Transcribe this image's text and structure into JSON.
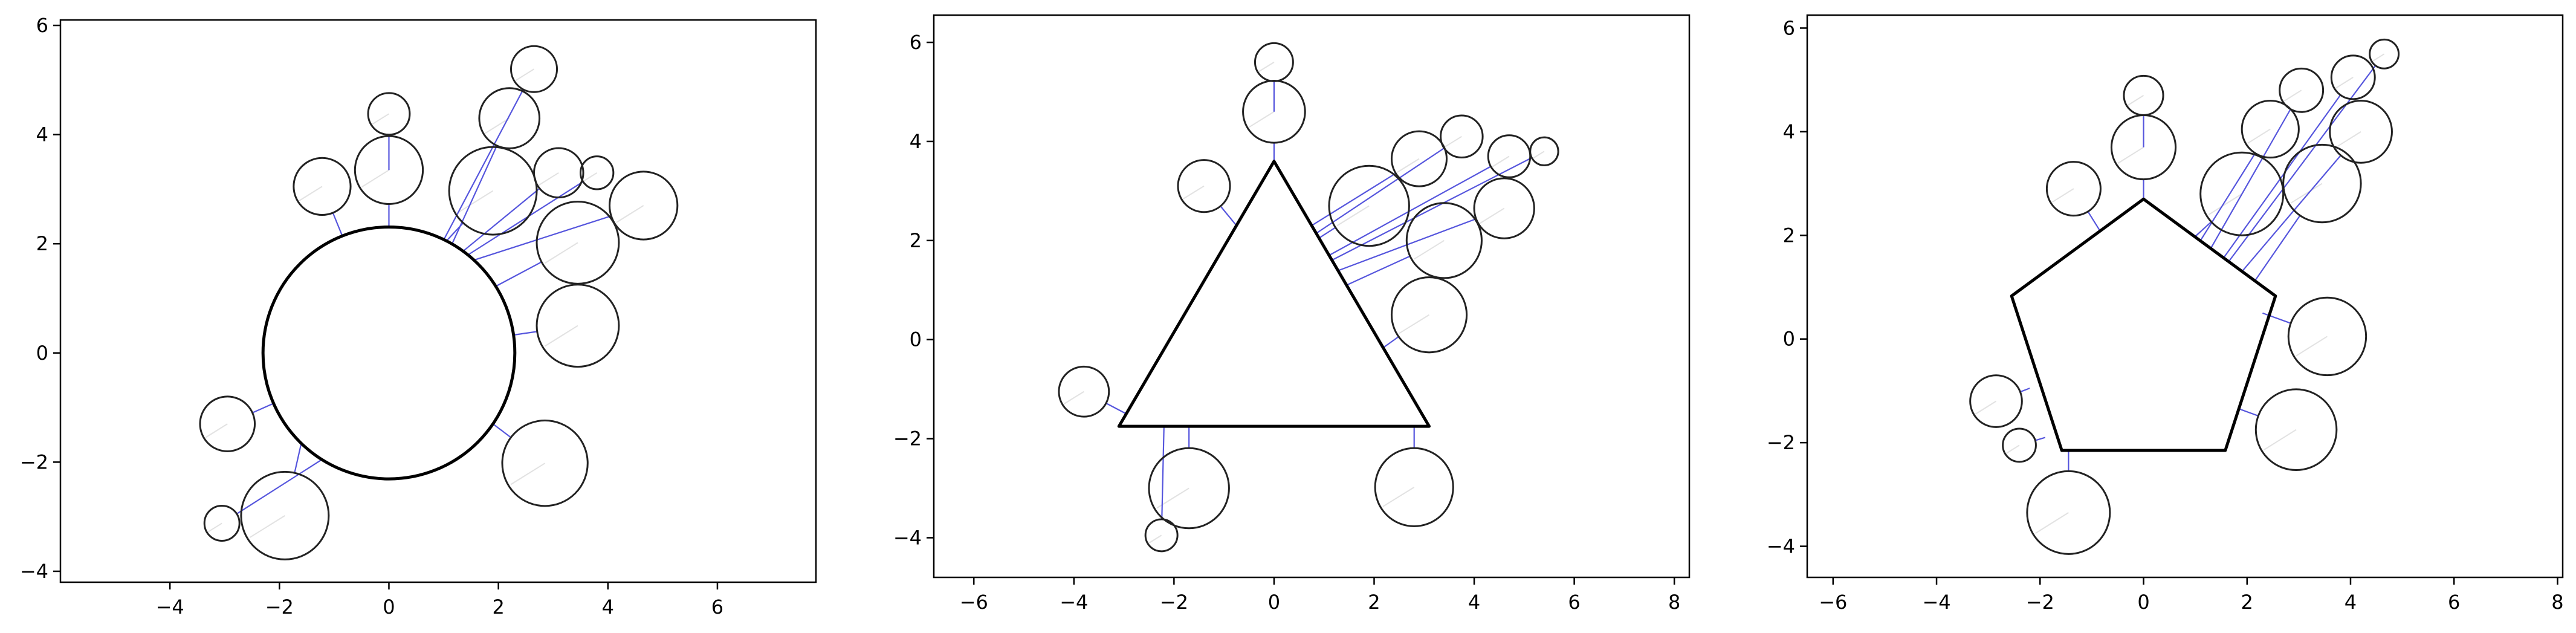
{
  "chart_data": [
    {
      "type": "scatter",
      "subtype": "circle-arrangement",
      "title": "",
      "xlabel": "",
      "ylabel": "",
      "xlim": [
        -6.0,
        7.8
      ],
      "ylim": [
        -4.2,
        6.1
      ],
      "xticks": [
        -4,
        -2,
        0,
        2,
        4,
        6
      ],
      "xtick_labels": [
        "−4",
        "−2",
        "0",
        "2",
        "4",
        "6"
      ],
      "yticks": [
        -4,
        -2,
        0,
        2,
        4,
        6
      ],
      "ytick_labels": [
        "−4",
        "−2",
        "0",
        "2",
        "4",
        "6"
      ],
      "grid": false,
      "central_shape": {
        "kind": "circle",
        "center": [
          0,
          0
        ],
        "radius": 2.3
      },
      "circles": [
        {
          "center": [
            0.0,
            4.38
          ],
          "radius": 0.38,
          "anchor": [
            0.0,
            3.35
          ]
        },
        {
          "center": [
            0.0,
            3.35
          ],
          "radius": 0.62,
          "anchor": [
            0.0,
            2.3
          ]
        },
        {
          "center": [
            -1.22,
            3.05
          ],
          "radius": 0.52,
          "anchor": [
            -0.85,
            2.14
          ]
        },
        {
          "center": [
            2.65,
            5.2
          ],
          "radius": 0.42,
          "anchor": [
            1.0,
            2.07
          ]
        },
        {
          "center": [
            2.2,
            4.3
          ],
          "radius": 0.55,
          "anchor": [
            1.15,
            1.99
          ]
        },
        {
          "center": [
            1.9,
            2.97
          ],
          "radius": 0.8,
          "anchor": [
            1.05,
            2.05
          ]
        },
        {
          "center": [
            3.1,
            3.3
          ],
          "radius": 0.45,
          "anchor": [
            1.35,
            1.86
          ]
        },
        {
          "center": [
            3.8,
            3.3
          ],
          "radius": 0.3,
          "anchor": [
            1.45,
            1.8
          ]
        },
        {
          "center": [
            4.65,
            2.7
          ],
          "radius": 0.62,
          "anchor": [
            1.55,
            1.7
          ]
        },
        {
          "center": [
            3.45,
            2.02
          ],
          "radius": 0.75,
          "anchor": [
            1.95,
            1.22
          ]
        },
        {
          "center": [
            3.45,
            0.5
          ],
          "radius": 0.75,
          "anchor": [
            2.28,
            0.33
          ]
        },
        {
          "center": [
            2.85,
            -2.02
          ],
          "radius": 0.78,
          "anchor": [
            1.9,
            -1.3
          ]
        },
        {
          "center": [
            -2.95,
            -1.3
          ],
          "radius": 0.5,
          "anchor": [
            -2.12,
            -0.93
          ]
        },
        {
          "center": [
            -1.9,
            -2.98
          ],
          "radius": 0.8,
          "anchor": [
            -1.6,
            -1.65
          ]
        },
        {
          "center": [
            -3.05,
            -3.12
          ],
          "radius": 0.32,
          "anchor": [
            -1.22,
            -1.95
          ]
        }
      ]
    },
    {
      "type": "scatter",
      "subtype": "circle-arrangement",
      "title": "",
      "xlabel": "",
      "ylabel": "",
      "xlim": [
        -6.8,
        8.3
      ],
      "ylim": [
        -4.8,
        6.55
      ],
      "xticks": [
        -6,
        -4,
        -2,
        0,
        2,
        4,
        6,
        8
      ],
      "xtick_labels": [
        "−6",
        "−4",
        "−2",
        "0",
        "2",
        "4",
        "6",
        "8"
      ],
      "yticks": [
        -4,
        -2,
        0,
        2,
        4,
        6
      ],
      "ytick_labels": [
        "−4",
        "−2",
        "0",
        "2",
        "4",
        "6"
      ],
      "grid": false,
      "central_shape": {
        "kind": "polygon",
        "vertices": [
          [
            0,
            3.6
          ],
          [
            -3.1,
            -1.75
          ],
          [
            3.1,
            -1.75
          ]
        ]
      },
      "circles": [
        {
          "center": [
            0.0,
            5.6
          ],
          "radius": 0.38,
          "anchor": [
            0.0,
            4.6
          ]
        },
        {
          "center": [
            0.0,
            4.6
          ],
          "radius": 0.62,
          "anchor": [
            0.0,
            3.6
          ]
        },
        {
          "center": [
            -1.4,
            3.1
          ],
          "radius": 0.52,
          "anchor": [
            -0.75,
            2.3
          ]
        },
        {
          "center": [
            1.9,
            2.7
          ],
          "radius": 0.8,
          "anchor": [
            0.9,
            2.05
          ]
        },
        {
          "center": [
            2.9,
            3.65
          ],
          "radius": 0.55,
          "anchor": [
            0.75,
            2.3
          ]
        },
        {
          "center": [
            3.75,
            4.1
          ],
          "radius": 0.42,
          "anchor": [
            0.85,
            2.15
          ]
        },
        {
          "center": [
            4.7,
            3.7
          ],
          "radius": 0.42,
          "anchor": [
            1.1,
            1.7
          ]
        },
        {
          "center": [
            5.4,
            3.8
          ],
          "radius": 0.28,
          "anchor": [
            1.15,
            1.6
          ]
        },
        {
          "center": [
            4.6,
            2.65
          ],
          "radius": 0.6,
          "anchor": [
            1.3,
            1.4
          ]
        },
        {
          "center": [
            3.4,
            2.0
          ],
          "radius": 0.75,
          "anchor": [
            1.45,
            1.1
          ]
        },
        {
          "center": [
            3.1,
            0.5
          ],
          "radius": 0.75,
          "anchor": [
            2.2,
            -0.15
          ]
        },
        {
          "center": [
            2.8,
            -2.98
          ],
          "radius": 0.78,
          "anchor": [
            2.8,
            -1.75
          ]
        },
        {
          "center": [
            -3.8,
            -1.05
          ],
          "radius": 0.5,
          "anchor": [
            -2.95,
            -1.5
          ]
        },
        {
          "center": [
            -1.7,
            -3.0
          ],
          "radius": 0.8,
          "anchor": [
            -1.7,
            -1.75
          ]
        },
        {
          "center": [
            -2.25,
            -3.95
          ],
          "radius": 0.32,
          "anchor": [
            -2.2,
            -1.75
          ]
        }
      ]
    },
    {
      "type": "scatter",
      "subtype": "circle-arrangement",
      "title": "",
      "xlabel": "",
      "ylabel": "",
      "xlim": [
        -6.5,
        8.1
      ],
      "ylim": [
        -4.6,
        6.25
      ],
      "xticks": [
        -6,
        -4,
        -2,
        0,
        2,
        4,
        6,
        8
      ],
      "xtick_labels": [
        "−6",
        "−4",
        "−2",
        "0",
        "2",
        "4",
        "6",
        "8"
      ],
      "yticks": [
        -4,
        -2,
        0,
        2,
        4,
        6
      ],
      "ytick_labels": [
        "−4",
        "−2",
        "0",
        "2",
        "4",
        "6"
      ],
      "grid": false,
      "central_shape": {
        "kind": "polygon",
        "vertices": [
          [
            0,
            2.7
          ],
          [
            2.55,
            0.83
          ],
          [
            1.58,
            -2.15
          ],
          [
            -1.58,
            -2.15
          ],
          [
            -2.55,
            0.83
          ]
        ]
      },
      "circles": [
        {
          "center": [
            0.0,
            4.7
          ],
          "radius": 0.38,
          "anchor": [
            0.0,
            3.7
          ]
        },
        {
          "center": [
            0.0,
            3.7
          ],
          "radius": 0.62,
          "anchor": [
            0.0,
            2.7
          ]
        },
        {
          "center": [
            -1.35,
            2.9
          ],
          "radius": 0.52,
          "anchor": [
            -0.85,
            2.1
          ]
        },
        {
          "center": [
            1.9,
            2.8
          ],
          "radius": 0.8,
          "anchor": [
            1.0,
            1.98
          ]
        },
        {
          "center": [
            2.45,
            4.05
          ],
          "radius": 0.55,
          "anchor": [
            1.1,
            1.9
          ]
        },
        {
          "center": [
            3.05,
            4.8
          ],
          "radius": 0.42,
          "anchor": [
            1.3,
            1.75
          ]
        },
        {
          "center": [
            4.05,
            5.05
          ],
          "radius": 0.42,
          "anchor": [
            1.55,
            1.57
          ]
        },
        {
          "center": [
            4.65,
            5.5
          ],
          "radius": 0.28,
          "anchor": [
            1.65,
            1.5
          ]
        },
        {
          "center": [
            4.2,
            4.0
          ],
          "radius": 0.6,
          "anchor": [
            1.9,
            1.3
          ]
        },
        {
          "center": [
            3.45,
            3.0
          ],
          "radius": 0.75,
          "anchor": [
            2.15,
            1.12
          ]
        },
        {
          "center": [
            3.55,
            0.05
          ],
          "radius": 0.75,
          "anchor": [
            2.3,
            0.5
          ]
        },
        {
          "center": [
            2.95,
            -1.75
          ],
          "radius": 0.78,
          "anchor": [
            1.85,
            -1.35
          ]
        },
        {
          "center": [
            -2.85,
            -1.2
          ],
          "radius": 0.5,
          "anchor": [
            -2.2,
            -0.95
          ]
        },
        {
          "center": [
            -1.45,
            -3.35
          ],
          "radius": 0.8,
          "anchor": [
            -1.45,
            -2.15
          ]
        },
        {
          "center": [
            -2.4,
            -2.05
          ],
          "radius": 0.32,
          "anchor": [
            -1.9,
            -1.9
          ]
        }
      ]
    }
  ]
}
